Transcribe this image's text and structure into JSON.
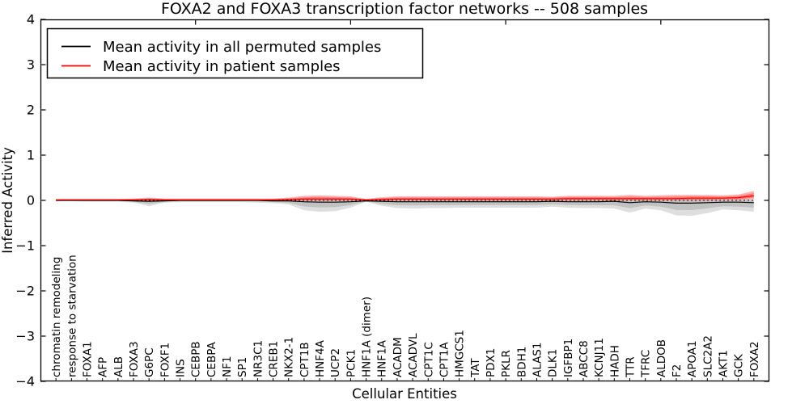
{
  "chart_data": {
    "type": "line",
    "title": "FOXA2 and FOXA3 transcription factor networks -- 508 samples",
    "xlabel": "Cellular Entities",
    "ylabel": "Inferred Activity",
    "ylim": [
      -4,
      4
    ],
    "xlim_units": [
      0,
      47
    ],
    "grid": false,
    "zero_line": {
      "show": true,
      "style": "dotted",
      "color": "#000000"
    },
    "ytick_values": [
      4,
      3,
      2,
      1,
      0,
      -1,
      -2,
      -3,
      -4
    ],
    "ytick_labels": [
      "4",
      "3",
      "2",
      "1",
      "0",
      "−1",
      "−2",
      "−3",
      "−4"
    ],
    "top_tick_positions": [
      10,
      20,
      30,
      40
    ],
    "legend": {
      "position": "upper left",
      "items": [
        {
          "label": "Mean activity in all permuted samples",
          "color": "#000000"
        },
        {
          "label": "Mean activity in patient samples",
          "color": "#ff0000"
        }
      ]
    },
    "categories": [
      "chromatin remodeling",
      "response to starvation",
      "FOXA1",
      "AFP",
      "ALB",
      "FOXA3",
      "G6PC",
      "FOXF1",
      "INS",
      "CEBPB",
      "CEBPA",
      "NF1",
      "SP1",
      "NR3C1",
      "CREB1",
      "NKX2-1",
      "CPT1B",
      "HNF4A",
      "UCP2",
      "PCK1",
      "HNF1A (dimer)",
      "HNF1A",
      "ACADM",
      "ACADVL",
      "CPT1C",
      "CPT1A",
      "HMGCS1",
      "TAT",
      "PDX1",
      "PKLR",
      "BDH1",
      "ALAS1",
      "DLK1",
      "IGFBP1",
      "ABCC8",
      "KCNJ11",
      "HADH",
      "TTR",
      "TFRC",
      "ALDOB",
      "F2",
      "APOA1",
      "SLC2A2",
      "AKT1",
      "GCK",
      "FOXA2"
    ],
    "series": [
      {
        "name": "Mean activity in all permuted samples",
        "color": "#000000",
        "band_fill": "rgba(0,0,0,0.13)",
        "values": [
          0,
          0,
          0,
          0,
          0,
          -0.01,
          -0.02,
          -0.01,
          0,
          0,
          0,
          0,
          0,
          0,
          -0.01,
          -0.01,
          -0.03,
          -0.04,
          -0.04,
          -0.03,
          -0.01,
          -0.02,
          -0.03,
          -0.03,
          -0.03,
          -0.03,
          -0.03,
          -0.03,
          -0.03,
          -0.03,
          -0.03,
          -0.03,
          -0.02,
          -0.03,
          -0.03,
          -0.03,
          -0.02,
          -0.05,
          -0.03,
          -0.04,
          -0.06,
          -0.06,
          -0.05,
          -0.04,
          -0.04,
          -0.05
        ],
        "band_low": [
          -0.02,
          -0.02,
          -0.03,
          -0.03,
          -0.03,
          -0.05,
          -0.13,
          -0.05,
          -0.04,
          -0.04,
          -0.04,
          -0.04,
          -0.04,
          -0.05,
          -0.06,
          -0.09,
          -0.22,
          -0.25,
          -0.24,
          -0.16,
          -0.03,
          -0.12,
          -0.17,
          -0.18,
          -0.17,
          -0.17,
          -0.16,
          -0.16,
          -0.16,
          -0.16,
          -0.16,
          -0.16,
          -0.14,
          -0.16,
          -0.17,
          -0.17,
          -0.18,
          -0.27,
          -0.18,
          -0.22,
          -0.33,
          -0.34,
          -0.28,
          -0.2,
          -0.22,
          -0.25
        ],
        "band_high": [
          0.02,
          0.02,
          0.02,
          0.02,
          0.03,
          0.03,
          0.07,
          0.03,
          0.02,
          0.02,
          0.02,
          0.02,
          0.02,
          0.02,
          0.03,
          0.03,
          0.05,
          0.05,
          0.05,
          0.04,
          0.02,
          0.03,
          0.04,
          0.04,
          0.04,
          0.04,
          0.04,
          0.04,
          0.04,
          0.04,
          0.04,
          0.04,
          0.03,
          0.04,
          0.04,
          0.04,
          0.04,
          0.05,
          0.04,
          0.04,
          0.05,
          0.05,
          0.05,
          0.04,
          0.04,
          0.04
        ]
      },
      {
        "name": "Mean activity in patient samples",
        "color": "#ff0000",
        "band_fill": "rgba(255,0,0,0.30)",
        "values": [
          0.01,
          0.01,
          0.01,
          0.01,
          0.01,
          0.01,
          0.02,
          0.01,
          0.01,
          0.01,
          0.01,
          0.01,
          0.01,
          0.01,
          0.01,
          0.02,
          0.03,
          0.03,
          0.03,
          0.03,
          0.01,
          0.02,
          0.03,
          0.03,
          0.03,
          0.03,
          0.03,
          0.03,
          0.03,
          0.03,
          0.03,
          0.03,
          0.03,
          0.04,
          0.04,
          0.04,
          0.04,
          0.04,
          0.04,
          0.04,
          0.04,
          0.05,
          0.05,
          0.05,
          0.06,
          0.1
        ],
        "band_low": [
          0,
          0,
          0,
          0,
          0,
          0,
          0,
          0,
          0,
          0,
          0,
          0,
          0,
          0,
          0,
          0,
          0,
          0,
          0,
          0,
          0,
          0,
          0,
          0,
          0,
          0,
          0,
          0,
          0,
          0,
          0,
          0,
          0,
          0,
          0,
          0,
          0,
          0,
          0,
          0,
          0,
          0,
          0,
          0.01,
          0.01,
          0.03
        ],
        "band_high": [
          0.03,
          0.03,
          0.03,
          0.03,
          0.03,
          0.04,
          0.05,
          0.04,
          0.04,
          0.04,
          0.04,
          0.04,
          0.04,
          0.04,
          0.04,
          0.06,
          0.1,
          0.11,
          0.1,
          0.09,
          0.03,
          0.07,
          0.09,
          0.09,
          0.09,
          0.09,
          0.09,
          0.09,
          0.09,
          0.09,
          0.09,
          0.09,
          0.08,
          0.1,
          0.1,
          0.1,
          0.1,
          0.12,
          0.1,
          0.11,
          0.12,
          0.12,
          0.12,
          0.11,
          0.13,
          0.21
        ]
      }
    ]
  }
}
